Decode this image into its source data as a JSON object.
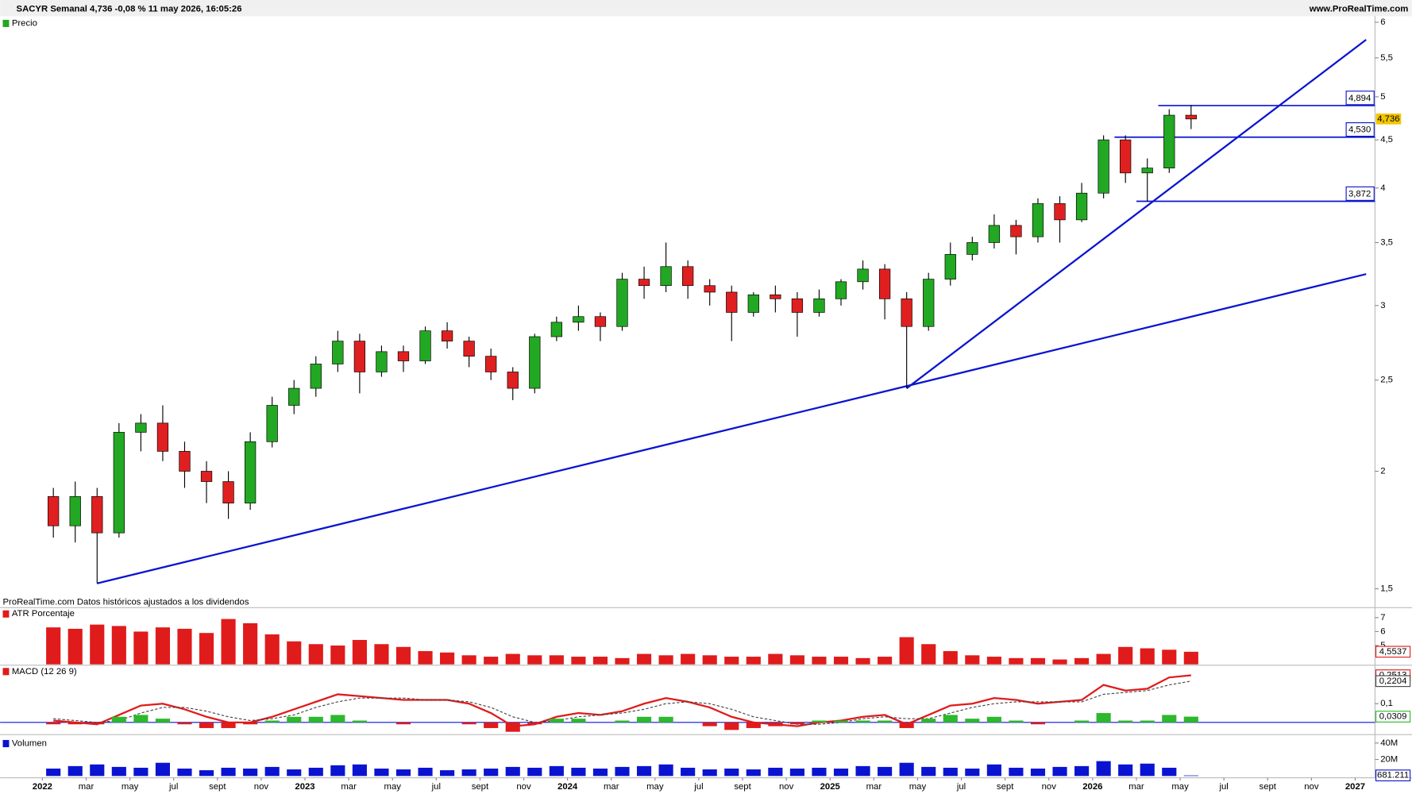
{
  "header": {
    "title": "SACYR Semanal 4,736 -0,08 % 11 may 2026, 16:05:26",
    "site": "www.ProRealTime.com",
    "note": "ProRealTime.com Datos históricos ajustados a los dividendos"
  },
  "chart_data": [
    {
      "type": "candlestick",
      "name": "Precio",
      "log_scale": true,
      "x": [
        "2022-01",
        "2022-02",
        "2022-03",
        "2022-04",
        "2022-05",
        "2022-06",
        "2022-07",
        "2022-08",
        "2022-09",
        "2022-10",
        "2022-11",
        "2022-12",
        "2023-01",
        "2023-02",
        "2023-03",
        "2023-04",
        "2023-05",
        "2023-06",
        "2023-07",
        "2023-08",
        "2023-09",
        "2023-10",
        "2023-11",
        "2023-12",
        "2024-01",
        "2024-02",
        "2024-03",
        "2024-04",
        "2024-05",
        "2024-06",
        "2024-07",
        "2024-08",
        "2024-09",
        "2024-10",
        "2024-11",
        "2024-12",
        "2025-01",
        "2025-02",
        "2025-03",
        "2025-04",
        "2025-05",
        "2025-06",
        "2025-07",
        "2025-08",
        "2025-09",
        "2025-10",
        "2025-11",
        "2025-12",
        "2026-01",
        "2026-02",
        "2026-03",
        "2026-04",
        "2026-05"
      ],
      "open": [
        1.88,
        1.75,
        1.88,
        1.72,
        2.2,
        2.25,
        2.1,
        2.0,
        1.95,
        1.85,
        2.15,
        2.35,
        2.45,
        2.6,
        2.75,
        2.55,
        2.68,
        2.62,
        2.82,
        2.75,
        2.65,
        2.55,
        2.45,
        2.78,
        2.88,
        2.92,
        2.85,
        3.2,
        3.15,
        3.3,
        3.15,
        3.1,
        2.95,
        3.08,
        3.05,
        2.95,
        3.05,
        3.18,
        3.28,
        3.05,
        2.85,
        3.2,
        3.4,
        3.5,
        3.65,
        3.55,
        3.85,
        3.7,
        3.95,
        4.5,
        4.15,
        4.2,
        4.78
      ],
      "high": [
        1.92,
        1.95,
        1.92,
        2.25,
        2.3,
        2.35,
        2.15,
        2.05,
        2.0,
        2.2,
        2.4,
        2.5,
        2.65,
        2.82,
        2.8,
        2.72,
        2.72,
        2.85,
        2.88,
        2.78,
        2.7,
        2.58,
        2.8,
        2.92,
        3.0,
        2.95,
        3.25,
        3.3,
        3.5,
        3.35,
        3.2,
        3.15,
        3.1,
        3.15,
        3.1,
        3.12,
        3.2,
        3.35,
        3.32,
        3.1,
        3.25,
        3.5,
        3.55,
        3.75,
        3.7,
        3.9,
        3.92,
        4.05,
        4.55,
        4.55,
        4.3,
        4.85,
        4.9
      ],
      "low": [
        1.7,
        1.68,
        1.52,
        1.7,
        2.1,
        2.05,
        1.92,
        1.85,
        1.78,
        1.82,
        2.12,
        2.3,
        2.4,
        2.55,
        2.42,
        2.52,
        2.55,
        2.6,
        2.7,
        2.58,
        2.5,
        2.38,
        2.42,
        2.75,
        2.82,
        2.75,
        2.82,
        3.05,
        3.1,
        3.05,
        3.0,
        2.75,
        2.92,
        2.95,
        2.78,
        2.92,
        3.0,
        3.12,
        2.9,
        2.45,
        2.82,
        3.15,
        3.35,
        3.45,
        3.4,
        3.5,
        3.5,
        3.68,
        3.9,
        4.05,
        3.87,
        4.15,
        4.62
      ],
      "close": [
        1.75,
        1.88,
        1.72,
        2.2,
        2.25,
        2.1,
        2.0,
        1.95,
        1.85,
        2.15,
        2.35,
        2.45,
        2.6,
        2.75,
        2.55,
        2.68,
        2.62,
        2.82,
        2.75,
        2.65,
        2.55,
        2.45,
        2.78,
        2.88,
        2.92,
        2.85,
        3.2,
        3.15,
        3.3,
        3.15,
        3.1,
        2.95,
        3.08,
        3.05,
        2.95,
        3.05,
        3.18,
        3.28,
        3.05,
        2.85,
        3.2,
        3.4,
        3.5,
        3.65,
        3.55,
        3.85,
        3.7,
        3.95,
        4.5,
        4.15,
        4.2,
        4.78,
        4.736
      ],
      "up_color": "#22a822",
      "down_color": "#e02020",
      "ylim": [
        1.474,
        6.09
      ],
      "yticks": [
        {
          "value": 1.5,
          "label": "1,5"
        },
        2,
        {
          "value": 2.5,
          "label": "2,5"
        },
        3,
        {
          "value": 3.5,
          "label": "3,5"
        },
        4,
        {
          "value": 4.5,
          "label": "4,5"
        },
        5,
        {
          "value": 5.5,
          "label": "5,5"
        },
        6
      ],
      "last_price": {
        "value": 4.736,
        "label": "4,736"
      },
      "trendlines": [
        {
          "x": [
            "2022-03",
            "2027-01"
          ],
          "y": [
            1.52,
            3.24
          ]
        },
        {
          "x": [
            "2025-04",
            "2027-01"
          ],
          "y": [
            2.45,
            5.75
          ]
        }
      ],
      "line_color": "#0a14d0",
      "levels": [
        {
          "value": 4.894,
          "label": "4,894",
          "from": "2026-04"
        },
        {
          "value": 4.53,
          "label": "4,530",
          "from": "2026-02"
        },
        {
          "value": 3.872,
          "label": "3,872",
          "from": "2026-03"
        }
      ]
    },
    {
      "type": "bar",
      "name": "ATR Porcentaje",
      "color": "#e01b1b",
      "values": [
        6.3,
        6.2,
        6.5,
        6.4,
        6.0,
        6.3,
        6.2,
        5.9,
        6.9,
        6.6,
        5.8,
        5.3,
        5.1,
        5.0,
        5.4,
        5.1,
        4.9,
        4.6,
        4.5,
        4.3,
        4.2,
        4.4,
        4.3,
        4.3,
        4.2,
        4.2,
        4.1,
        4.4,
        4.3,
        4.4,
        4.3,
        4.2,
        4.2,
        4.4,
        4.3,
        4.2,
        4.2,
        4.1,
        4.2,
        5.6,
        5.1,
        4.6,
        4.3,
        4.2,
        4.1,
        4.1,
        4.0,
        4.1,
        4.4,
        4.9,
        4.8,
        4.7,
        4.5537
      ],
      "ylim": [
        3.65,
        7.65
      ],
      "yticks": [
        5,
        6,
        7
      ],
      "last_label": {
        "value": 4.5537,
        "label": "4,5537"
      }
    },
    {
      "type": "macd",
      "name": "MACD (12 26 9)",
      "series": [
        {
          "color": "#e01b1b",
          "values": [
            0.01,
            0.0,
            -0.01,
            0.04,
            0.09,
            0.1,
            0.07,
            0.03,
            0.0,
            0.0,
            0.03,
            0.07,
            0.11,
            0.15,
            0.14,
            0.13,
            0.12,
            0.12,
            0.12,
            0.1,
            0.05,
            -0.02,
            -0.01,
            0.03,
            0.05,
            0.04,
            0.06,
            0.1,
            0.13,
            0.11,
            0.08,
            0.03,
            0.0,
            -0.01,
            -0.02,
            0.0,
            0.01,
            0.03,
            0.04,
            -0.01,
            0.04,
            0.09,
            0.1,
            0.13,
            0.12,
            0.1,
            0.11,
            0.12,
            0.2,
            0.17,
            0.18,
            0.24,
            0.2513
          ],
          "last_label": {
            "value": 0.2513,
            "label": "0,2513"
          }
        },
        {
          "color": "#444444",
          "dashed": true,
          "values": [
            0.02,
            0.01,
            0.0,
            0.01,
            0.05,
            0.08,
            0.08,
            0.06,
            0.03,
            0.01,
            0.02,
            0.04,
            0.08,
            0.11,
            0.13,
            0.13,
            0.13,
            0.12,
            0.12,
            0.11,
            0.08,
            0.03,
            0.0,
            0.01,
            0.03,
            0.04,
            0.05,
            0.07,
            0.1,
            0.11,
            0.1,
            0.07,
            0.03,
            0.01,
            -0.01,
            -0.01,
            0.0,
            0.02,
            0.03,
            0.02,
            0.02,
            0.05,
            0.08,
            0.1,
            0.11,
            0.11,
            0.11,
            0.11,
            0.15,
            0.16,
            0.17,
            0.2,
            0.2204
          ],
          "last_label": {
            "value": 0.2204,
            "label": "0,2204"
          }
        },
        {
          "type": "histogram",
          "color": "#2db82d",
          "neg_color": "#e01b1b",
          "values": [
            -0.01,
            -0.01,
            -0.01,
            0.03,
            0.04,
            0.02,
            -0.01,
            -0.03,
            -0.03,
            -0.01,
            0.01,
            0.03,
            0.03,
            0.04,
            0.01,
            0.0,
            -0.01,
            0.0,
            0.0,
            -0.01,
            -0.03,
            -0.05,
            -0.01,
            0.02,
            0.02,
            0.0,
            0.01,
            0.03,
            0.03,
            0.0,
            -0.02,
            -0.04,
            -0.03,
            -0.02,
            -0.01,
            0.01,
            0.01,
            0.01,
            0.01,
            -0.03,
            0.02,
            0.04,
            0.02,
            0.03,
            0.01,
            -0.01,
            0.0,
            0.01,
            0.05,
            0.01,
            0.01,
            0.04,
            0.0309
          ],
          "last_label": {
            "value": 0.0309,
            "label": "0,0309"
          }
        }
      ],
      "ylim": [
        -0.06,
        0.3
      ],
      "yticks": [
        {
          "value": 0.1,
          "label": "0,1"
        }
      ]
    },
    {
      "type": "bar",
      "name": "Volumen",
      "color": "#0a14d0",
      "values": [
        9000000.0,
        12000000.0,
        14000000.0,
        11000000.0,
        10000000.0,
        16000000.0,
        9000000.0,
        7000000.0,
        10000000.0,
        9000000.0,
        11000000.0,
        8000000.0,
        10000000.0,
        13000000.0,
        14000000.0,
        9000000.0,
        8000000.0,
        10000000.0,
        7000000.0,
        8000000.0,
        9000000.0,
        11000000.0,
        10000000.0,
        12000000.0,
        10000000.0,
        9000000.0,
        11000000.0,
        12000000.0,
        14000000.0,
        10000000.0,
        8000000.0,
        9000000.0,
        8000000.0,
        10000000.0,
        9000000.0,
        10000000.0,
        9000000.0,
        12000000.0,
        11000000.0,
        16000000.0,
        11000000.0,
        10000000.0,
        9000000.0,
        14000000.0,
        10000000.0,
        9000000.0,
        11000000.0,
        12000000.0,
        18000000.0,
        14000000.0,
        15000000.0,
        10000000.0,
        681211
      ],
      "ylim": [
        0,
        48000000
      ],
      "yticks": [
        {
          "value": 20000000,
          "label": "20M"
        },
        {
          "value": 40000000,
          "label": "40M"
        }
      ],
      "last_label": {
        "value": 681211,
        "label": "681.211"
      },
      "xticks": [
        {
          "value": "2022-01",
          "label": "2022"
        },
        {
          "value": "2022-03",
          "label": "mar"
        },
        {
          "value": "2022-05",
          "label": "may"
        },
        {
          "value": "2022-07",
          "label": "jul"
        },
        {
          "value": "2022-09",
          "label": "sept"
        },
        {
          "value": "2022-11",
          "label": "nov"
        },
        {
          "value": "2023-01",
          "label": "2023"
        },
        {
          "value": "2023-03",
          "label": "mar"
        },
        {
          "value": "2023-05",
          "label": "may"
        },
        {
          "value": "2023-07",
          "label": "jul"
        },
        {
          "value": "2023-09",
          "label": "sept"
        },
        {
          "value": "2023-11",
          "label": "nov"
        },
        {
          "value": "2024-01",
          "label": "2024"
        },
        {
          "value": "2024-03",
          "label": "mar"
        },
        {
          "value": "2024-05",
          "label": "may"
        },
        {
          "value": "2024-07",
          "label": "jul"
        },
        {
          "value": "2024-09",
          "label": "sept"
        },
        {
          "value": "2024-11",
          "label": "nov"
        },
        {
          "value": "2025-01",
          "label": "2025"
        },
        {
          "value": "2025-03",
          "label": "mar"
        },
        {
          "value": "2025-05",
          "label": "may"
        },
        {
          "value": "2025-07",
          "label": "jul"
        },
        {
          "value": "2025-09",
          "label": "sept"
        },
        {
          "value": "2025-11",
          "label": "nov"
        },
        {
          "value": "2026-01",
          "label": "2026"
        },
        {
          "value": "2026-03",
          "label": "mar"
        },
        {
          "value": "2026-05",
          "label": "may"
        },
        {
          "value": "2026-07",
          "label": "jul"
        },
        {
          "value": "2026-09",
          "label": "sept"
        },
        {
          "value": "2026-11",
          "label": "nov"
        },
        {
          "value": "2027-01",
          "label": "2027"
        }
      ]
    }
  ]
}
